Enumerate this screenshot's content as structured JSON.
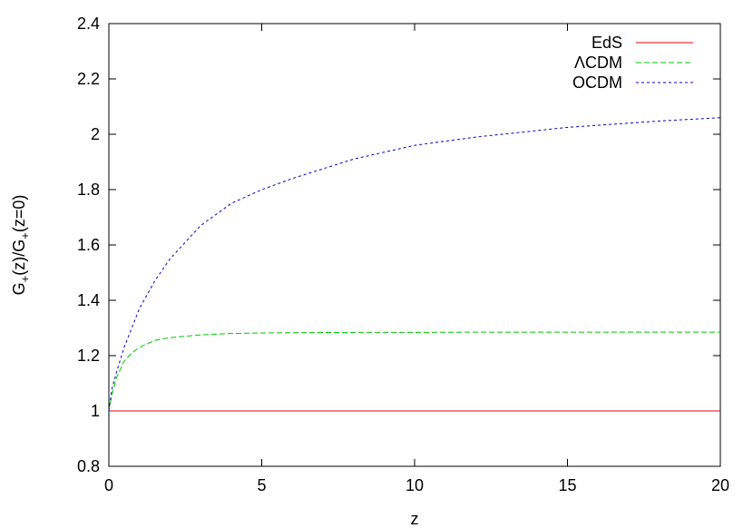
{
  "chart_data": {
    "type": "line",
    "title": "",
    "xlabel": "z",
    "ylabel": {
      "g1": "G",
      "sub1": "+",
      "mid": "(z)/G",
      "sub2": "+",
      "tail": "(z=0)"
    },
    "xlim": [
      0,
      20
    ],
    "ylim": [
      0.8,
      2.4
    ],
    "x_ticks": [
      0,
      5,
      10,
      15,
      20
    ],
    "x_tick_labels": [
      "0",
      "5",
      "10",
      "15",
      "20"
    ],
    "y_ticks": [
      0.8,
      1.0,
      1.2,
      1.4,
      1.6,
      1.8,
      2.0,
      2.2,
      2.4
    ],
    "y_tick_labels": [
      "0.8",
      "1",
      "1.2",
      "1.4",
      "1.6",
      "1.8",
      "2",
      "2.2",
      "2.4"
    ],
    "grid": false,
    "legend_position": "top-right",
    "series": [
      {
        "name": "EdS",
        "color": "#e8000b",
        "dash": "solid",
        "x": [
          0,
          0.25,
          0.5,
          1,
          1.5,
          2,
          3,
          4,
          5,
          6,
          8,
          10,
          12,
          15,
          18,
          20
        ],
        "y": [
          1,
          1,
          1,
          1,
          1,
          1,
          1,
          1,
          1,
          1,
          1,
          1,
          1,
          1,
          1,
          1
        ]
      },
      {
        "name": "ΛCDM",
        "color": "#00c800",
        "dash": "dashed",
        "x": [
          0,
          0.1,
          0.25,
          0.5,
          0.75,
          1,
          1.5,
          2,
          3,
          4,
          5,
          6,
          8,
          10,
          12,
          15,
          18,
          20
        ],
        "y": [
          1.0,
          1.06,
          1.12,
          1.18,
          1.21,
          1.23,
          1.255,
          1.265,
          1.275,
          1.28,
          1.282,
          1.283,
          1.284,
          1.284,
          1.285,
          1.285,
          1.285,
          1.285
        ]
      },
      {
        "name": "OCDM",
        "color": "#0000cd",
        "dash": "dotted",
        "x": [
          0,
          0.1,
          0.25,
          0.5,
          0.75,
          1,
          1.5,
          2,
          3,
          4,
          5,
          6,
          8,
          10,
          12,
          15,
          18,
          20
        ],
        "y": [
          1.0,
          1.08,
          1.14,
          1.23,
          1.3,
          1.37,
          1.47,
          1.55,
          1.67,
          1.75,
          1.8,
          1.84,
          1.91,
          1.96,
          1.99,
          2.025,
          2.048,
          2.06
        ]
      }
    ]
  }
}
